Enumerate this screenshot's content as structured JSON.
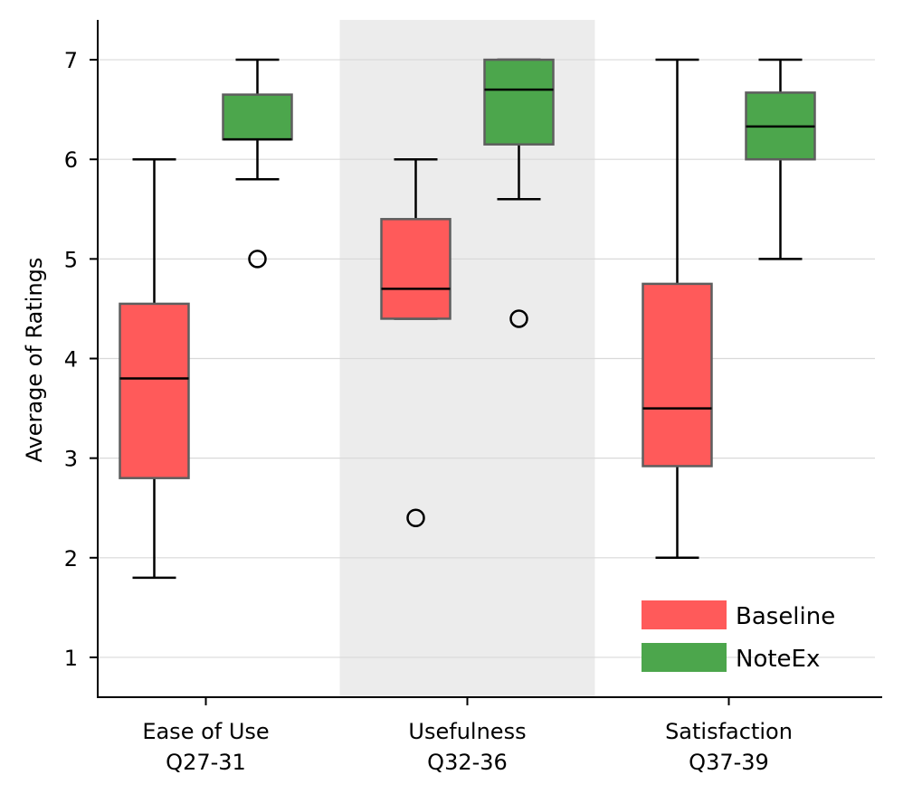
{
  "chart_data": {
    "type": "box",
    "title": "",
    "xlabel": "",
    "ylabel": "Average of Ratings",
    "ylim": [
      0.6,
      7.4
    ],
    "yticks": [
      1,
      2,
      3,
      4,
      5,
      6,
      7
    ],
    "grid": "horizontal",
    "categories": [
      {
        "line1": "Ease of Use",
        "line2": "Q27-31",
        "shaded": false
      },
      {
        "line1": "Usefulness",
        "line2": "Q32-36",
        "shaded": true
      },
      {
        "line1": "Satisfaction",
        "line2": "Q37-39",
        "shaded": false
      }
    ],
    "series": [
      {
        "name": "Baseline",
        "color": "#ff5a5a",
        "boxes": [
          {
            "whisker_low": 1.8,
            "q1": 2.8,
            "median": 3.8,
            "q3": 4.55,
            "whisker_high": 6.0,
            "outliers": []
          },
          {
            "whisker_low": 4.4,
            "q1": 4.4,
            "median": 4.7,
            "q3": 5.4,
            "whisker_high": 6.0,
            "outliers": [
              2.4
            ]
          },
          {
            "whisker_low": 2.0,
            "q1": 2.92,
            "median": 3.5,
            "q3": 4.75,
            "whisker_high": 7.0,
            "outliers": []
          }
        ]
      },
      {
        "name": "NoteEx",
        "color": "#4ca64c",
        "boxes": [
          {
            "whisker_low": 5.8,
            "q1": 6.2,
            "median": 6.2,
            "q3": 6.65,
            "whisker_high": 7.0,
            "outliers": [
              5.0
            ]
          },
          {
            "whisker_low": 5.6,
            "q1": 6.15,
            "median": 6.7,
            "q3": 7.0,
            "whisker_high": 7.0,
            "outliers": [
              4.4
            ]
          },
          {
            "whisker_low": 5.0,
            "q1": 6.0,
            "median": 6.33,
            "q3": 6.67,
            "whisker_high": 7.0,
            "outliers": []
          }
        ]
      }
    ],
    "legend": {
      "position": "bottom-right",
      "entries": [
        "Baseline",
        "NoteEx"
      ]
    }
  }
}
